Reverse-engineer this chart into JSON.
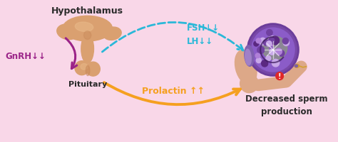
{
  "background_color": "#f9d7e8",
  "hypothalamus_label": "Hypothalamus",
  "pituitary_label": "Pituitary",
  "gnrh_label": "GnRH↓↓",
  "fsh_label": "FSH↓↓",
  "lh_label": "LH↓↓",
  "prolactin_label": "Prolactin ↑↑",
  "sperm_label": "Decreased sperm\nproduction",
  "gnrh_color": "#9b2388",
  "fsh_lh_color": "#2ab8d8",
  "prolactin_color": "#f5a020",
  "sperm_label_color": "#2a2a2a",
  "hypothalamus_color": "#2a2a2a",
  "pituitary_color": "#2a2a2a",
  "hypo_fill": "#daa070",
  "hypo_highlight": "#e8b888",
  "hypo_shadow": "#c88858",
  "testis_outer": "#6b3d9a",
  "testis_inner": "#8b5cc8",
  "testis_fill": "#a070d0",
  "testis_green": "#70a060",
  "epi_color": "#dda888"
}
